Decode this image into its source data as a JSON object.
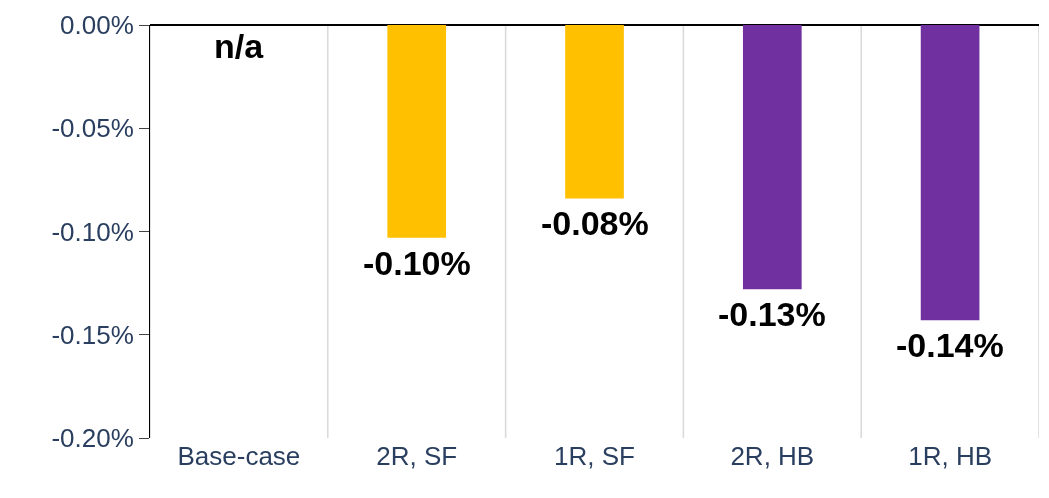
{
  "chart_data": {
    "type": "bar",
    "categories": [
      "Base-case",
      "2R, SF",
      "1R, SF",
      "2R, HB",
      "1R, HB"
    ],
    "values": [
      null,
      -0.103,
      -0.084,
      -0.128,
      -0.143
    ],
    "colors": [
      "#ffc000",
      "#ffc000",
      "#ffc000",
      "#7030a0",
      "#7030a0"
    ],
    "value_labels": [
      "n/a",
      "-0.10%",
      "-0.08%",
      "-0.13%",
      "-0.14%"
    ],
    "ylim": [
      -0.2,
      0
    ],
    "yticks": [
      {
        "value": 0,
        "label": "0.00%"
      },
      {
        "value": -0.05,
        "label": "-0.05%"
      },
      {
        "value": -0.1,
        "label": "-0.10%"
      },
      {
        "value": -0.15,
        "label": "-0.15%"
      },
      {
        "value": -0.2,
        "label": "-0.20%"
      }
    ],
    "grid": "x",
    "legend": false
  }
}
